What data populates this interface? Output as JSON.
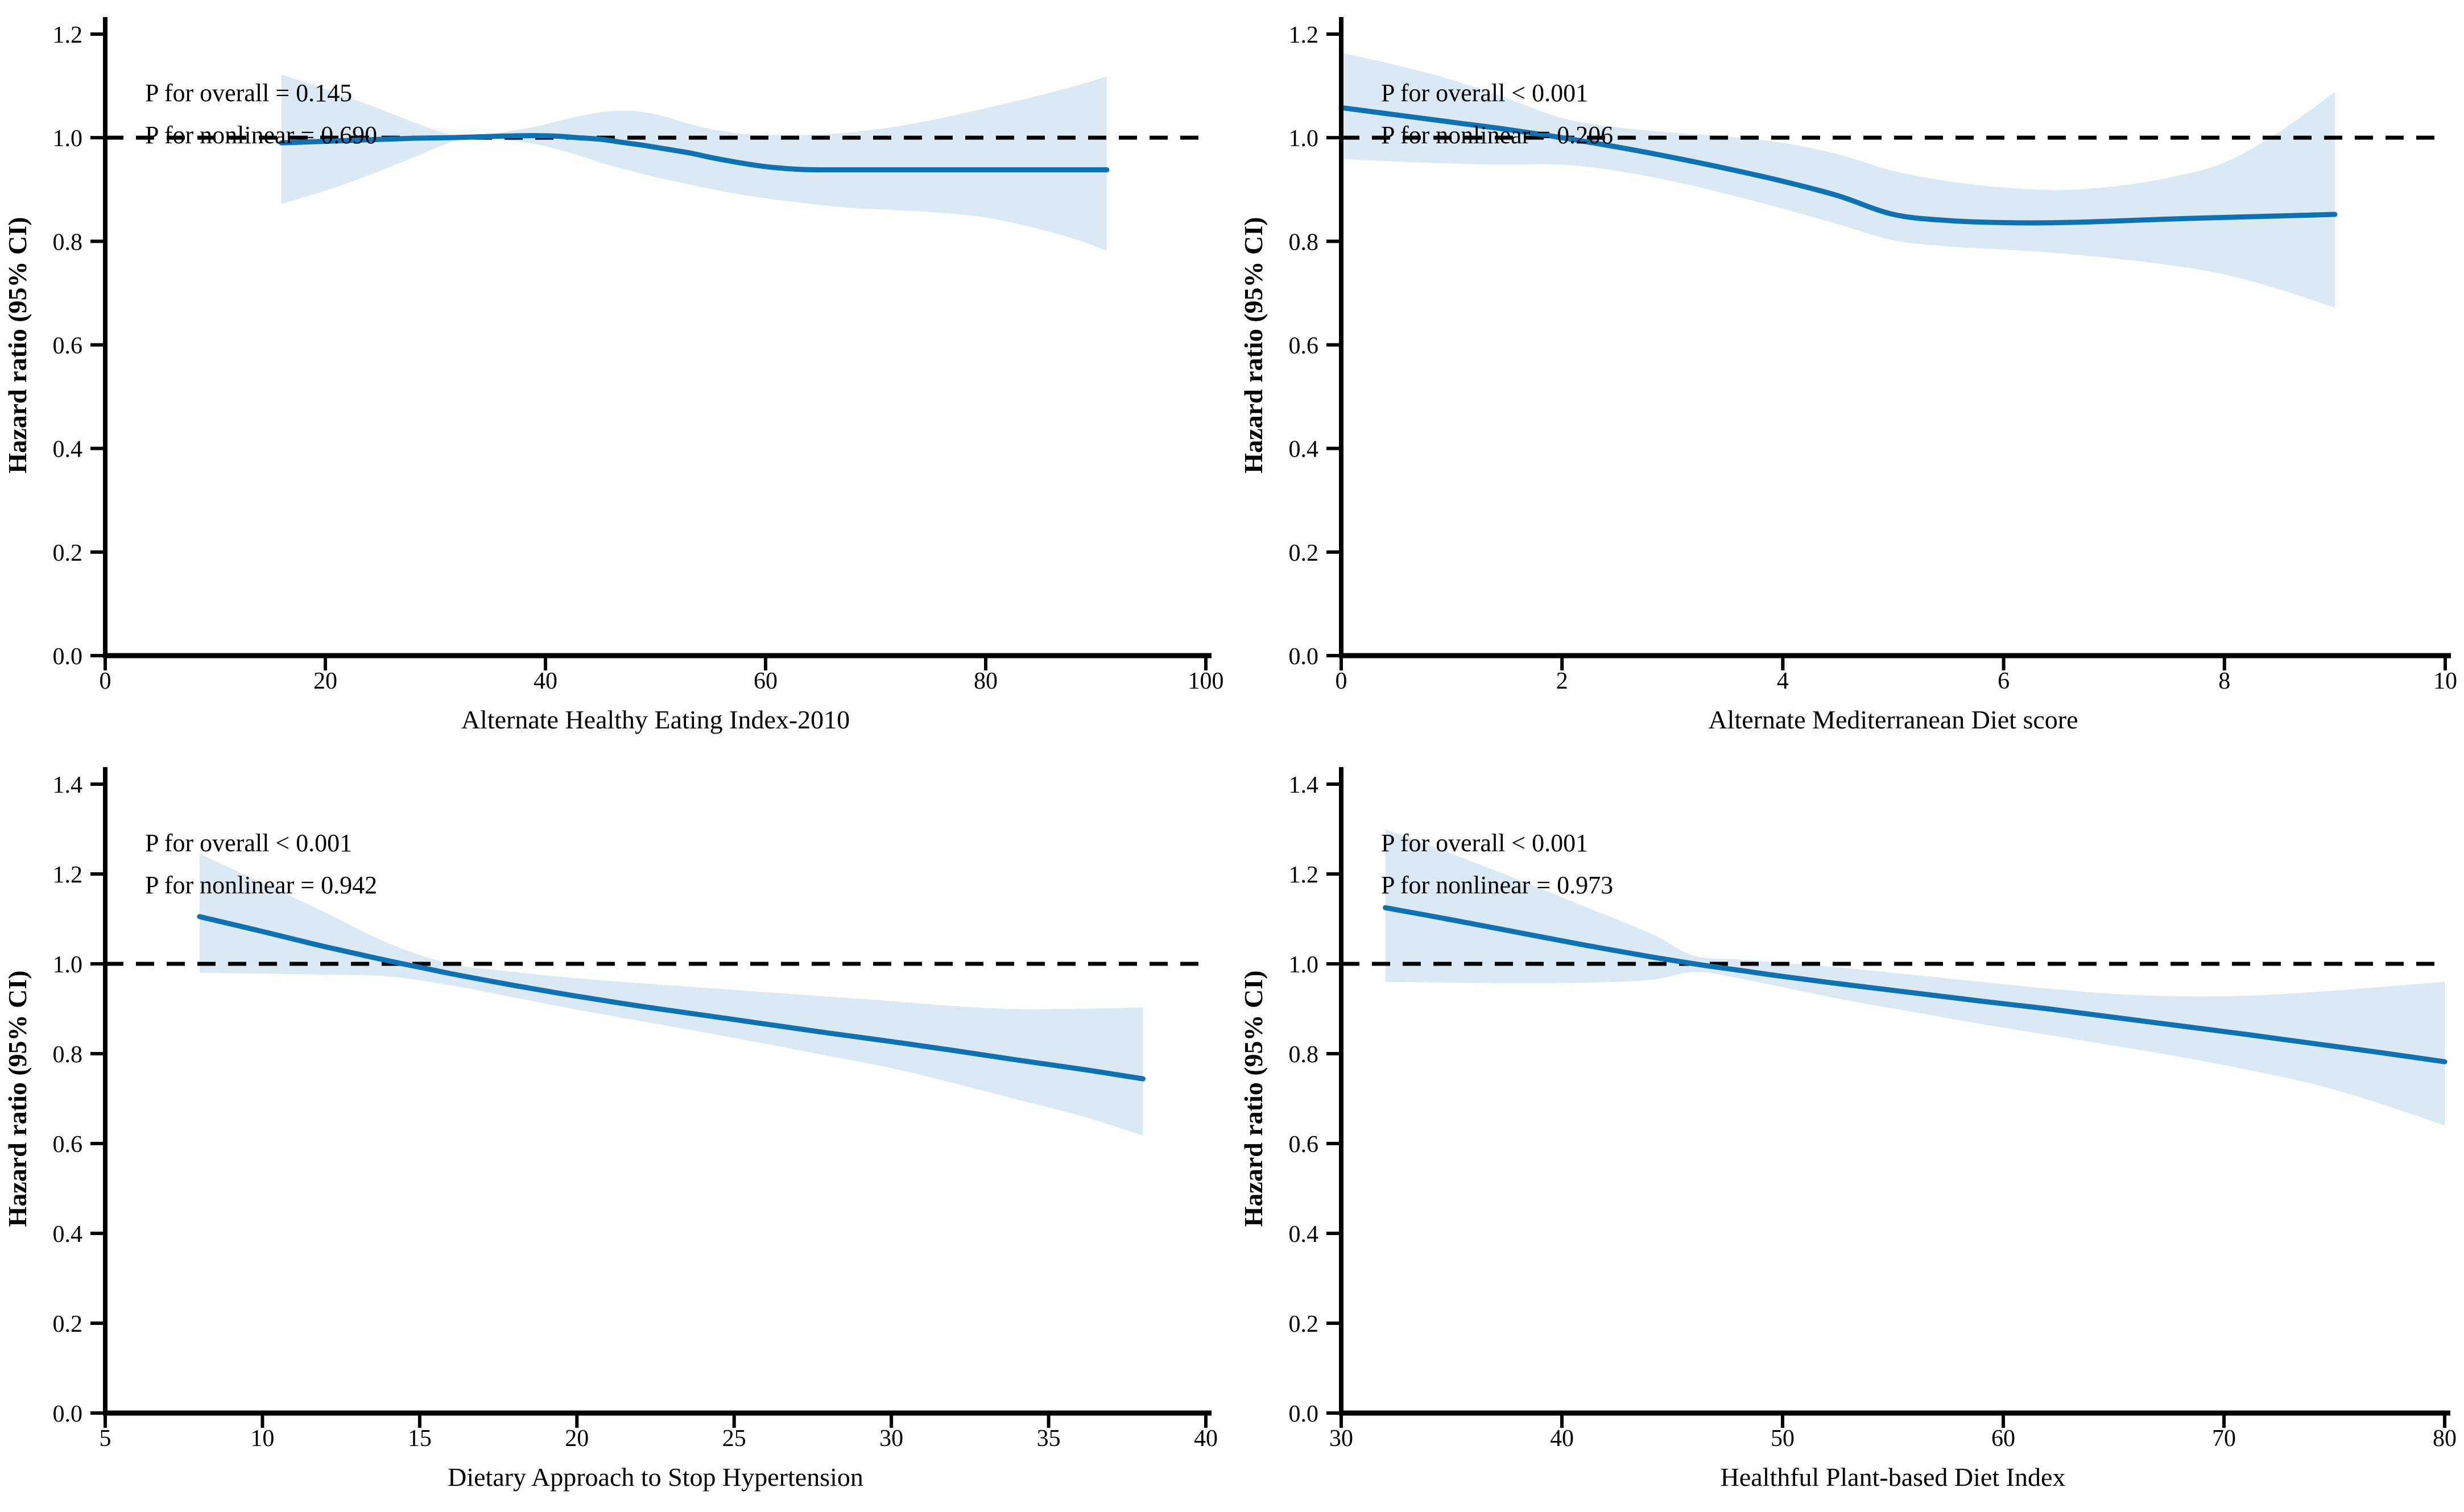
{
  "figure": {
    "background": "#ffffff",
    "curve_color": "#0d71b2",
    "band_color": "#dbe9f5",
    "reference_line_color": "#000000",
    "axis_color": "#000000",
    "ylabel": "Hazard ratio (95% CI)"
  },
  "chart_data": [
    {
      "id": "ahei",
      "type": "line",
      "title": "",
      "xlabel": "Alternate Healthy Eating Index-2010",
      "ylabel": "Hazard ratio (95% CI)",
      "annotations": [
        "P for overall = 0.145",
        "P for nonlinear = 0.690"
      ],
      "p_overall": "0.145",
      "p_nonlinear": "0.690",
      "xlim": [
        0,
        100
      ],
      "xticks": [
        0,
        20,
        40,
        60,
        80,
        100
      ],
      "ylim": [
        0.0,
        1.2
      ],
      "yticks": [
        "0.0",
        "0.2",
        "0.4",
        "0.6",
        "0.8",
        "1.0",
        "1.2"
      ],
      "reference_y": 1.0,
      "grid": false,
      "legend": null,
      "x": [
        16,
        20,
        24,
        28,
        31,
        33,
        36,
        39,
        41,
        43,
        45,
        47,
        49,
        51,
        53,
        55,
        57,
        59,
        61,
        63,
        65,
        68,
        72,
        76,
        80,
        84,
        88,
        91
      ],
      "hr": [
        0.99,
        0.993,
        0.996,
        0.999,
        1.0,
        1.001,
        1.003,
        1.004,
        1.003,
        1.0,
        0.997,
        0.991,
        0.985,
        0.978,
        0.971,
        0.962,
        0.954,
        0.947,
        0.942,
        0.939,
        0.938,
        0.938,
        0.938,
        0.938,
        0.938,
        0.938,
        0.938,
        0.938
      ],
      "ci_lower": [
        0.872,
        0.898,
        0.928,
        0.962,
        0.988,
        0.998,
        0.996,
        0.988,
        0.978,
        0.966,
        0.952,
        0.94,
        0.929,
        0.919,
        0.91,
        0.901,
        0.893,
        0.886,
        0.88,
        0.875,
        0.87,
        0.864,
        0.86,
        0.855,
        0.846,
        0.828,
        0.805,
        0.782
      ],
      "ci_upper": [
        1.122,
        1.094,
        1.063,
        1.03,
        1.008,
        1.002,
        1.01,
        1.021,
        1.031,
        1.041,
        1.049,
        1.052,
        1.049,
        1.04,
        1.027,
        1.017,
        1.01,
        1.006,
        1.005,
        1.005,
        1.006,
        1.011,
        1.022,
        1.038,
        1.057,
        1.077,
        1.099,
        1.118
      ]
    },
    {
      "id": "amed",
      "type": "line",
      "title": "",
      "xlabel": "Alternate Mediterranean Diet score",
      "ylabel": "Hazard ratio (95% CI)",
      "annotations": [
        "P for overall < 0.001",
        "P for nonlinear = 0.206"
      ],
      "p_overall": "< 0.001",
      "p_nonlinear": "0.206",
      "xlim": [
        0,
        10
      ],
      "xticks": [
        0,
        2,
        4,
        6,
        8,
        10
      ],
      "ylim": [
        0.0,
        1.2
      ],
      "yticks": [
        "0.0",
        "0.2",
        "0.4",
        "0.6",
        "0.8",
        "1.0",
        "1.2"
      ],
      "reference_y": 1.0,
      "grid": false,
      "legend": null,
      "x": [
        0,
        0.5,
        1,
        1.5,
        2,
        2.5,
        3,
        3.5,
        4,
        4.5,
        5,
        5.5,
        6,
        6.5,
        7,
        7.5,
        8,
        8.5,
        9
      ],
      "hr": [
        1.058,
        1.044,
        1.03,
        1.016,
        1.0,
        0.982,
        0.962,
        0.94,
        0.916,
        0.888,
        0.852,
        0.84,
        0.836,
        0.836,
        0.839,
        0.843,
        0.846,
        0.849,
        0.852
      ],
      "ci_lower": [
        0.959,
        0.954,
        0.95,
        0.948,
        0.948,
        0.936,
        0.916,
        0.891,
        0.863,
        0.833,
        0.802,
        0.79,
        0.784,
        0.777,
        0.767,
        0.754,
        0.736,
        0.707,
        0.672
      ],
      "ci_upper": [
        1.164,
        1.14,
        1.112,
        1.076,
        1.038,
        1.02,
        1.01,
        1.002,
        0.99,
        0.968,
        0.936,
        0.916,
        0.904,
        0.899,
        0.906,
        0.923,
        0.952,
        1.012,
        1.088
      ]
    },
    {
      "id": "dash",
      "type": "line",
      "title": "",
      "xlabel": "Dietary Approach to Stop Hypertension",
      "ylabel": "Hazard ratio (95% CI)",
      "annotations": [
        "P for overall < 0.001",
        "P for nonlinear = 0.942"
      ],
      "p_overall": "< 0.001",
      "p_nonlinear": "0.942",
      "xlim": [
        5,
        40
      ],
      "xticks": [
        5,
        10,
        15,
        20,
        25,
        30,
        35,
        40
      ],
      "ylim": [
        0.0,
        1.4
      ],
      "yticks": [
        "0.0",
        "0.2",
        "0.4",
        "0.6",
        "0.8",
        "1.0",
        "1.2",
        "1.4"
      ],
      "reference_y": 1.0,
      "grid": false,
      "legend": null,
      "x": [
        8,
        10,
        12,
        14,
        16,
        18,
        20,
        22,
        24,
        26,
        28,
        30,
        32,
        34,
        36,
        38
      ],
      "hr": [
        1.105,
        1.072,
        1.038,
        1.007,
        0.978,
        0.952,
        0.928,
        0.906,
        0.886,
        0.866,
        0.846,
        0.827,
        0.807,
        0.786,
        0.766,
        0.744
      ],
      "ci_lower": [
        0.98,
        0.978,
        0.976,
        0.972,
        0.952,
        0.925,
        0.898,
        0.873,
        0.848,
        0.822,
        0.795,
        0.768,
        0.734,
        0.698,
        0.662,
        0.618
      ],
      "ci_upper": [
        1.245,
        1.18,
        1.114,
        1.046,
        1.0,
        0.982,
        0.968,
        0.957,
        0.947,
        0.937,
        0.927,
        0.917,
        0.906,
        0.899,
        0.9,
        0.903
      ]
    },
    {
      "id": "hpdi",
      "type": "line",
      "title": "",
      "xlabel": "Healthful Plant-based Diet Index",
      "ylabel": "Hazard ratio (95% CI)",
      "annotations": [
        "P for overall < 0.001",
        "P for nonlinear = 0.973"
      ],
      "p_overall": "< 0.001",
      "p_nonlinear": "0.973",
      "xlim": [
        30,
        80
      ],
      "xticks": [
        30,
        40,
        50,
        60,
        70,
        80
      ],
      "ylim": [
        0.0,
        1.4
      ],
      "yticks": [
        "0.0",
        "0.2",
        "0.4",
        "0.6",
        "0.8",
        "1.0",
        "1.2",
        "1.4"
      ],
      "reference_y": 1.0,
      "grid": false,
      "legend": null,
      "x": [
        32,
        35,
        38,
        41,
        44,
        46,
        48,
        50,
        53,
        56,
        59,
        62,
        65,
        68,
        71,
        74,
        77,
        80
      ],
      "hr": [
        1.125,
        1.098,
        1.07,
        1.042,
        1.016,
        1.0,
        0.986,
        0.972,
        0.953,
        0.935,
        0.917,
        0.9,
        0.881,
        0.862,
        0.843,
        0.823,
        0.803,
        0.782
      ],
      "ci_lower": [
        0.96,
        0.958,
        0.957,
        0.958,
        0.964,
        0.982,
        0.968,
        0.948,
        0.918,
        0.892,
        0.866,
        0.842,
        0.818,
        0.793,
        0.765,
        0.733,
        0.69,
        0.64
      ],
      "ci_upper": [
        1.3,
        1.245,
        1.188,
        1.128,
        1.068,
        1.018,
        1.01,
        1.002,
        0.99,
        0.975,
        0.96,
        0.945,
        0.933,
        0.928,
        0.929,
        0.937,
        0.948,
        0.96
      ]
    }
  ]
}
